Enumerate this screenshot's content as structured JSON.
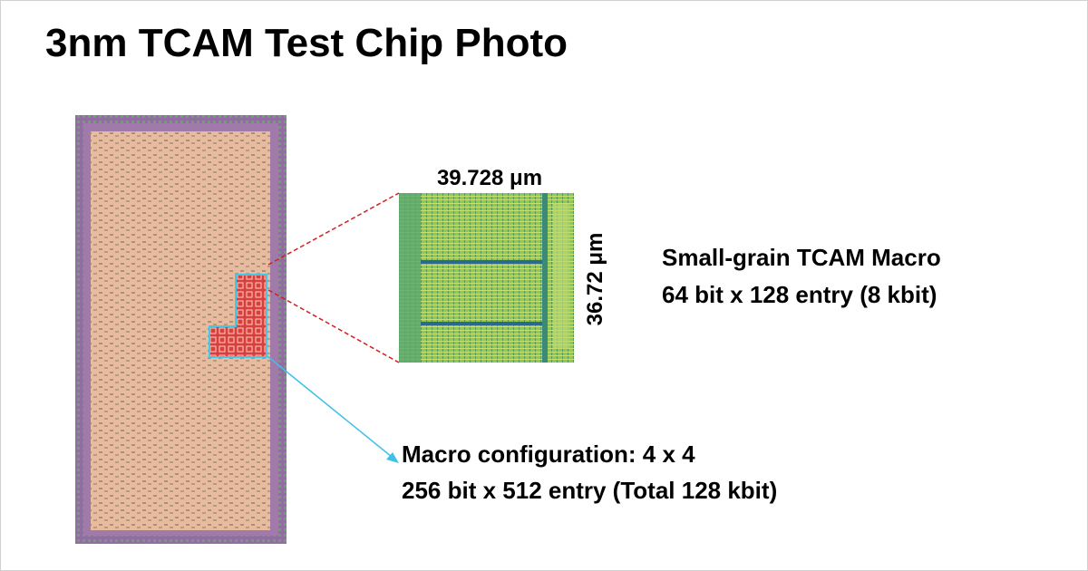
{
  "header": {
    "title": "3nm TCAM Test Chip Photo"
  },
  "zoom": {
    "width_label": "39.728 μm",
    "height_label": "36.72 μm"
  },
  "macro": {
    "name": "Small-grain TCAM Macro",
    "spec": "64 bit x 128 entry (8 kbit)"
  },
  "configuration": {
    "line1": "Macro configuration: 4 x 4",
    "line2": "256 bit x 512 entry (Total 128 kbit)"
  }
}
